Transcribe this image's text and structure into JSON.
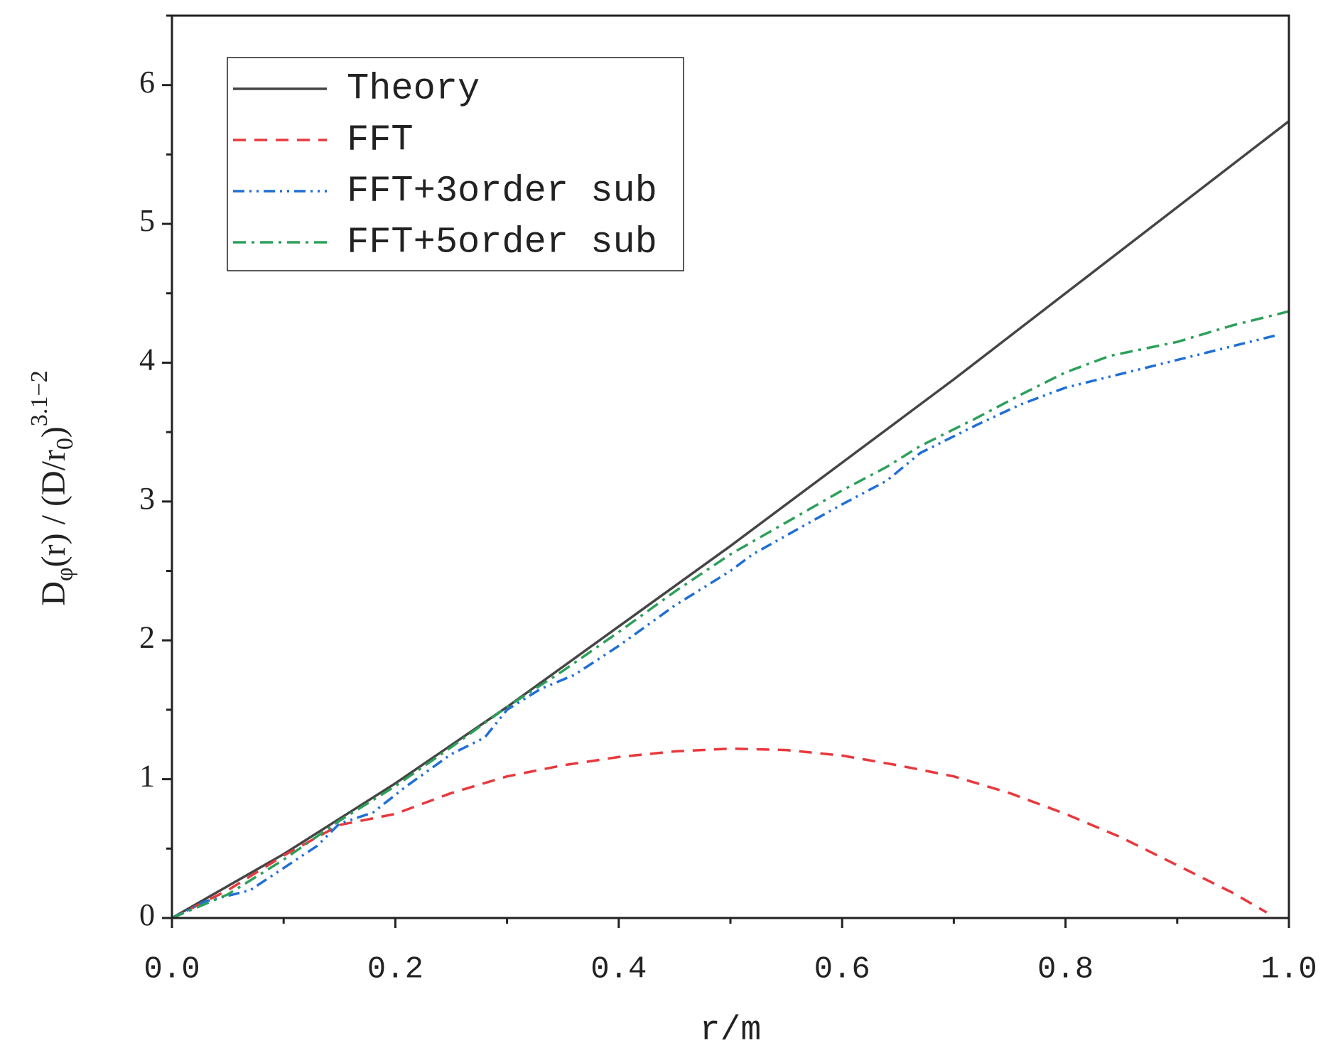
{
  "chart_data": {
    "type": "line",
    "xlabel": "r/m",
    "ylabel": [
      "D",
      "φ",
      "(r) / (D/r",
      "0",
      ")",
      "3.1−2"
    ],
    "xlim": [
      0,
      1.0
    ],
    "ylim": [
      0,
      6.5
    ],
    "xticks": [
      {
        "value": 0,
        "label": "0.0"
      },
      0.2,
      0.4,
      0.6,
      0.8,
      {
        "value": 1,
        "label": "1.0"
      }
    ],
    "xminorticks": [
      0.1,
      0.3,
      0.5,
      0.7,
      0.9
    ],
    "yticks": [
      0,
      1,
      2,
      3,
      4,
      5,
      6
    ],
    "yminorticks": [
      0.5,
      1.5,
      2.5,
      3.5,
      4.5,
      5.5,
      6.5
    ],
    "grid": false,
    "legend": "upper-left",
    "series": [
      {
        "name": "Theory",
        "color": "#454545",
        "linestyle": "solid",
        "x": [
          0,
          0.1,
          0.2,
          0.3,
          0.4,
          0.5,
          0.6,
          0.7,
          0.8,
          0.9,
          1.0
        ],
        "values": [
          0,
          0.46,
          0.97,
          1.52,
          2.1,
          2.68,
          3.28,
          3.88,
          4.5,
          5.12,
          5.74
        ]
      },
      {
        "name": "FFT",
        "color": "#e8383d",
        "linestyle": "dashed",
        "x": [
          0,
          0.05,
          0.1,
          0.15,
          0.2,
          0.25,
          0.3,
          0.35,
          0.4,
          0.45,
          0.5,
          0.55,
          0.6,
          0.65,
          0.7,
          0.75,
          0.8,
          0.85,
          0.9,
          0.95,
          0.98
        ],
        "values": [
          0,
          0.2,
          0.45,
          0.67,
          0.75,
          0.9,
          1.02,
          1.1,
          1.16,
          1.2,
          1.22,
          1.21,
          1.17,
          1.1,
          1.02,
          0.9,
          0.75,
          0.58,
          0.38,
          0.18,
          0.04
        ]
      },
      {
        "name": "FFT+3order sub",
        "color": "#1f6fd6",
        "linestyle": "dashdotdot",
        "x": [
          0,
          0.03,
          0.07,
          0.1,
          0.13,
          0.15,
          0.18,
          0.21,
          0.25,
          0.28,
          0.3,
          0.33,
          0.36,
          0.4,
          0.45,
          0.5,
          0.52,
          0.56,
          0.6,
          0.64,
          0.67,
          0.72,
          0.76,
          0.8,
          0.84,
          0.9,
          0.95,
          0.99
        ],
        "values": [
          0,
          0.12,
          0.2,
          0.36,
          0.52,
          0.68,
          0.76,
          0.95,
          1.18,
          1.3,
          1.5,
          1.65,
          1.75,
          1.96,
          2.25,
          2.5,
          2.62,
          2.8,
          2.98,
          3.15,
          3.35,
          3.55,
          3.7,
          3.82,
          3.9,
          4.02,
          4.12,
          4.2
        ]
      },
      {
        "name": "FFT+5order sub",
        "color": "#2ca05a",
        "linestyle": "dashdot",
        "x": [
          0,
          0.05,
          0.1,
          0.15,
          0.2,
          0.25,
          0.3,
          0.35,
          0.4,
          0.45,
          0.5,
          0.55,
          0.6,
          0.64,
          0.67,
          0.72,
          0.76,
          0.8,
          0.84,
          0.9,
          0.95,
          1.0
        ],
        "values": [
          0,
          0.17,
          0.42,
          0.7,
          0.95,
          1.23,
          1.52,
          1.78,
          2.06,
          2.35,
          2.62,
          2.85,
          3.08,
          3.25,
          3.4,
          3.6,
          3.77,
          3.93,
          4.05,
          4.15,
          4.27,
          4.37
        ]
      }
    ]
  }
}
